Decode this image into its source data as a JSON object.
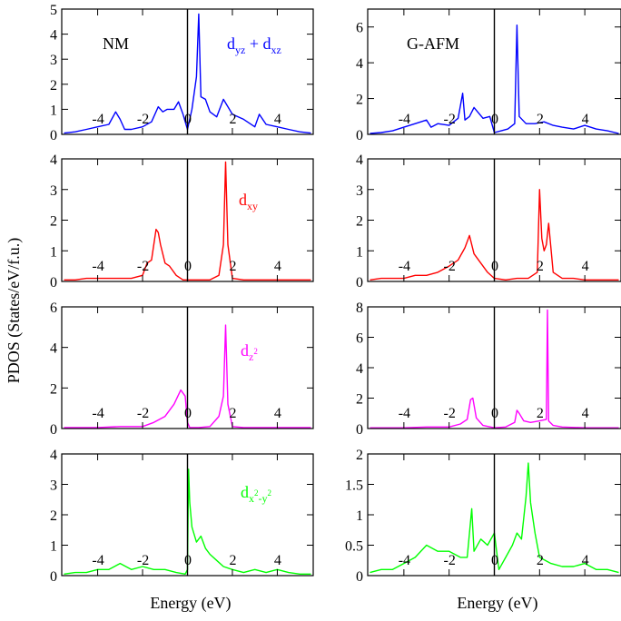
{
  "ylabel": "PDOS (States/eV/f.u.)",
  "xlabel": "Energy (eV)",
  "chart_data": [
    {
      "type": "line",
      "title": "NM",
      "annotation": "d_yz + d_xz",
      "color": "#0000ff",
      "xlim": [
        -5.6,
        5.6
      ],
      "ylim": [
        0,
        5
      ],
      "xticks": [
        -4,
        -2,
        0,
        2,
        4
      ],
      "xticklabels": [
        "-4",
        "-2",
        "0",
        "2",
        "4"
      ],
      "yticks": [
        0,
        1,
        2,
        3,
        4,
        5
      ],
      "yticklabels": [
        "0",
        "1",
        "2",
        "3",
        "4",
        "5"
      ],
      "series": [
        {
          "x": [
            -5.5,
            -5,
            -4.5,
            -4,
            -3.5,
            -3.2,
            -3,
            -2.8,
            -2.5,
            -2,
            -1.6,
            -1.3,
            -1.1,
            -0.9,
            -0.6,
            -0.4,
            -0.2,
            0,
            0.2,
            0.4,
            0.5,
            0.6,
            0.8,
            1,
            1.3,
            1.6,
            2,
            2.5,
            3,
            3.2,
            3.5,
            4,
            4.5,
            5,
            5.5
          ],
          "y": [
            0.05,
            0.1,
            0.2,
            0.3,
            0.4,
            0.9,
            0.6,
            0.2,
            0.2,
            0.3,
            0.5,
            1.1,
            0.9,
            1.0,
            1.0,
            1.3,
            0.8,
            0.2,
            1.0,
            2.3,
            4.8,
            1.5,
            1.4,
            0.9,
            0.7,
            1.4,
            0.8,
            0.6,
            0.3,
            0.8,
            0.4,
            0.3,
            0.2,
            0.1,
            0.05
          ]
        }
      ]
    },
    {
      "type": "line",
      "title": "G-AFM",
      "annotation": "",
      "color": "#0000ff",
      "xlim": [
        -5.6,
        5.6
      ],
      "ylim": [
        0,
        7
      ],
      "xticks": [
        -4,
        -2,
        0,
        2,
        4
      ],
      "xticklabels": [
        "-4",
        "-2",
        "0",
        "2",
        "4"
      ],
      "yticks": [
        0,
        2,
        4,
        6
      ],
      "yticklabels": [
        "0",
        "2",
        "4",
        "6"
      ],
      "series": [
        {
          "x": [
            -5.5,
            -5,
            -4.5,
            -4,
            -3.5,
            -3,
            -2.8,
            -2.5,
            -2,
            -1.6,
            -1.4,
            -1.3,
            -1.1,
            -0.9,
            -0.5,
            -0.2,
            0,
            0.3,
            0.6,
            0.9,
            1,
            1.1,
            1.4,
            1.8,
            2.2,
            2.6,
            3,
            3.5,
            4,
            4.5,
            5,
            5.5
          ],
          "y": [
            0.05,
            0.1,
            0.2,
            0.4,
            0.6,
            0.8,
            0.4,
            0.6,
            0.5,
            0.9,
            2.3,
            0.8,
            1.0,
            1.5,
            0.9,
            1.0,
            0.1,
            0.2,
            0.3,
            0.6,
            6.1,
            1.0,
            0.6,
            0.6,
            0.7,
            0.5,
            0.4,
            0.3,
            0.5,
            0.3,
            0.2,
            0.05
          ]
        }
      ]
    },
    {
      "type": "line",
      "title": "",
      "annotation": "d_xy",
      "color": "#ff0000",
      "xlim": [
        -5.6,
        5.6
      ],
      "ylim": [
        0,
        4
      ],
      "xticks": [
        -4,
        -2,
        0,
        2,
        4
      ],
      "xticklabels": [
        "-4",
        "-2",
        "0",
        "2",
        "4"
      ],
      "yticks": [
        0,
        1,
        2,
        3,
        4
      ],
      "yticklabels": [
        "0",
        "1",
        "2",
        "3",
        "4"
      ],
      "series": [
        {
          "x": [
            -5.5,
            -5,
            -4.5,
            -4,
            -3.5,
            -3,
            -2.5,
            -2,
            -1.8,
            -1.6,
            -1.4,
            -1.3,
            -1.2,
            -1,
            -0.8,
            -0.5,
            -0.2,
            0,
            0.5,
            1,
            1.4,
            1.6,
            1.7,
            1.8,
            2,
            2.5,
            3,
            3.5,
            4,
            4.5,
            5,
            5.5
          ],
          "y": [
            0.05,
            0.05,
            0.1,
            0.1,
            0.1,
            0.1,
            0.1,
            0.2,
            0.6,
            0.7,
            1.7,
            1.6,
            1.2,
            0.6,
            0.5,
            0.2,
            0.05,
            0.05,
            0.05,
            0.05,
            0.2,
            1.2,
            3.9,
            1.2,
            0.1,
            0.05,
            0.05,
            0.05,
            0.05,
            0.05,
            0.05,
            0.05
          ]
        }
      ]
    },
    {
      "type": "line",
      "title": "",
      "annotation": "",
      "color": "#ff0000",
      "xlim": [
        -5.6,
        5.6
      ],
      "ylim": [
        0,
        4
      ],
      "xticks": [
        -4,
        -2,
        0,
        2,
        4
      ],
      "xticklabels": [
        "-4",
        "-2",
        "0",
        "2",
        "4"
      ],
      "yticks": [
        0,
        1,
        2,
        3,
        4
      ],
      "yticklabels": [
        "0",
        "1",
        "2",
        "3",
        "4"
      ],
      "series": [
        {
          "x": [
            -5.5,
            -5,
            -4.5,
            -4,
            -3.5,
            -3,
            -2.5,
            -2,
            -1.6,
            -1.3,
            -1.1,
            -0.9,
            -0.6,
            -0.3,
            0,
            0.5,
            1,
            1.5,
            1.9,
            2,
            2.1,
            2.2,
            2.3,
            2.4,
            2.6,
            3,
            3.5,
            4,
            4.5,
            5,
            5.5
          ],
          "y": [
            0.05,
            0.1,
            0.1,
            0.1,
            0.2,
            0.2,
            0.3,
            0.5,
            0.7,
            1.1,
            1.5,
            0.9,
            0.6,
            0.3,
            0.1,
            0.05,
            0.1,
            0.1,
            0.3,
            3.0,
            1.4,
            1.0,
            1.2,
            1.9,
            0.3,
            0.1,
            0.1,
            0.05,
            0.05,
            0.05,
            0.05
          ]
        }
      ]
    },
    {
      "type": "line",
      "title": "",
      "annotation": "d_z^2",
      "color": "#ff00ff",
      "xlim": [
        -5.6,
        5.6
      ],
      "ylim": [
        0,
        6
      ],
      "xticks": [
        -4,
        -2,
        0,
        2,
        4
      ],
      "xticklabels": [
        "-4",
        "-2",
        "0",
        "2",
        "4"
      ],
      "yticks": [
        0,
        2,
        4,
        6
      ],
      "yticklabels": [
        "0",
        "2",
        "4",
        "6"
      ],
      "series": [
        {
          "x": [
            -5.5,
            -5,
            -4,
            -3,
            -2,
            -1.5,
            -1,
            -0.6,
            -0.3,
            -0.1,
            0,
            0.1,
            0.5,
            1,
            1.4,
            1.6,
            1.7,
            1.8,
            2,
            2.5,
            3,
            4,
            5,
            5.5
          ],
          "y": [
            0.05,
            0.05,
            0.05,
            0.1,
            0.1,
            0.3,
            0.6,
            1.2,
            1.9,
            1.6,
            0.3,
            0.05,
            0.05,
            0.1,
            0.6,
            1.6,
            5.1,
            1.2,
            0.1,
            0.05,
            0.05,
            0.05,
            0.05,
            0.05
          ]
        }
      ]
    },
    {
      "type": "line",
      "title": "",
      "annotation": "",
      "color": "#ff00ff",
      "xlim": [
        -5.6,
        5.6
      ],
      "ylim": [
        0,
        8
      ],
      "xticks": [
        -4,
        -2,
        0,
        2,
        4
      ],
      "xticklabels": [
        "-4",
        "-2",
        "0",
        "2",
        "4"
      ],
      "yticks": [
        0,
        2,
        4,
        6,
        8
      ],
      "yticklabels": [
        "0",
        "2",
        "4",
        "6",
        "8"
      ],
      "series": [
        {
          "x": [
            -5.5,
            -5,
            -4,
            -3,
            -2,
            -1.5,
            -1.2,
            -1.05,
            -0.95,
            -0.8,
            -0.5,
            0,
            0.5,
            0.9,
            1,
            1.1,
            1.3,
            1.6,
            2,
            2.3,
            2.35,
            2.4,
            2.6,
            3,
            4,
            5,
            5.5
          ],
          "y": [
            0.05,
            0.05,
            0.05,
            0.1,
            0.1,
            0.3,
            0.6,
            1.9,
            2.0,
            0.7,
            0.2,
            0.05,
            0.1,
            0.4,
            1.2,
            1.0,
            0.5,
            0.4,
            0.5,
            0.6,
            7.8,
            0.5,
            0.2,
            0.1,
            0.05,
            0.05,
            0.05
          ]
        }
      ]
    },
    {
      "type": "line",
      "title": "",
      "annotation": "d_x^2-y^2",
      "color": "#00ff00",
      "xlim": [
        -5.6,
        5.6
      ],
      "ylim": [
        0,
        4
      ],
      "xticks": [
        -4,
        -2,
        0,
        2,
        4
      ],
      "xticklabels": [
        "-4",
        "-2",
        "0",
        "2",
        "4"
      ],
      "yticks": [
        0,
        1,
        2,
        3,
        4
      ],
      "yticklabels": [
        "0",
        "1",
        "2",
        "3",
        "4"
      ],
      "series": [
        {
          "x": [
            -5.5,
            -5,
            -4.5,
            -4,
            -3.5,
            -3,
            -2.5,
            -2,
            -1.5,
            -1,
            -0.5,
            -0.1,
            0,
            0.05,
            0.1,
            0.2,
            0.4,
            0.6,
            0.8,
            1,
            1.3,
            1.6,
            2,
            2.5,
            3,
            3.5,
            4,
            4.5,
            5,
            5.5
          ],
          "y": [
            0.05,
            0.1,
            0.1,
            0.2,
            0.2,
            0.4,
            0.2,
            0.3,
            0.2,
            0.2,
            0.1,
            0.05,
            0.2,
            3.5,
            2.4,
            1.6,
            1.1,
            1.3,
            0.9,
            0.7,
            0.5,
            0.3,
            0.2,
            0.1,
            0.2,
            0.1,
            0.2,
            0.1,
            0.05,
            0.05
          ]
        }
      ]
    },
    {
      "type": "line",
      "title": "",
      "annotation": "",
      "color": "#00ff00",
      "xlim": [
        -5.6,
        5.6
      ],
      "ylim": [
        0,
        2
      ],
      "xticks": [
        -4,
        -2,
        0,
        2,
        4
      ],
      "xticklabels": [
        "-4",
        "-2",
        "0",
        "2",
        "4"
      ],
      "yticks": [
        0,
        0.5,
        1,
        1.5,
        2
      ],
      "yticklabels": [
        "0",
        "0.5",
        "1",
        "1.5",
        "2"
      ],
      "series": [
        {
          "x": [
            -5.5,
            -5,
            -4.5,
            -4,
            -3.5,
            -3,
            -2.5,
            -2,
            -1.5,
            -1.2,
            -1,
            -0.9,
            -0.6,
            -0.3,
            0,
            0.2,
            0.5,
            0.8,
            1,
            1.2,
            1.4,
            1.5,
            1.6,
            1.8,
            2,
            2.5,
            3,
            3.5,
            4,
            4.5,
            5,
            5.5
          ],
          "y": [
            0.05,
            0.1,
            0.1,
            0.2,
            0.3,
            0.5,
            0.4,
            0.4,
            0.3,
            0.3,
            1.1,
            0.4,
            0.6,
            0.5,
            0.7,
            0.1,
            0.3,
            0.5,
            0.7,
            0.6,
            1.3,
            1.85,
            1.2,
            0.7,
            0.3,
            0.2,
            0.15,
            0.15,
            0.2,
            0.1,
            0.1,
            0.05
          ]
        }
      ]
    }
  ]
}
